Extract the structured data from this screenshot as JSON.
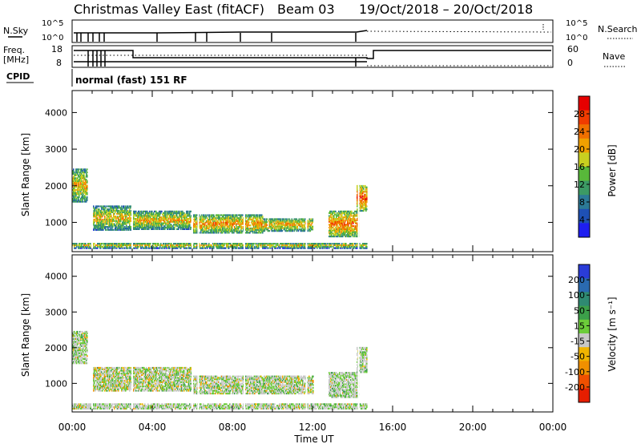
{
  "header": {
    "title": "Christmas Valley East (fitACF)",
    "beam": "Beam 03",
    "date_range": "19/Oct/2018 – 20/Oct/2018"
  },
  "params": {
    "nsky_label": "N.Sky",
    "nsky_tick_top": "10^5",
    "nsky_tick_bottom": "10^0",
    "nsearch_label": "N.Search",
    "nsearch_tick_top": "10^5",
    "nsearch_tick_bottom": "10^0",
    "freq_label": "Freq.",
    "freq_unit": "[MHz]",
    "freq_tick_top": "18",
    "freq_tick_bottom": "8",
    "nave_label": "Nave",
    "nave_tick_top": "60",
    "nave_tick_bottom": "0",
    "cpid_label": "CPID",
    "cpid_value": "normal (fast) 151 RF"
  },
  "colors": {
    "power": [
      "#1e1ef0",
      "#1e50b4",
      "#2c7a96",
      "#3c9a64",
      "#58b83a",
      "#c8d020",
      "#f0a000",
      "#f07000",
      "#f03c00",
      "#e60000"
    ],
    "velocity": [
      "#2a3cd8",
      "#2a6ab0",
      "#2f8a72",
      "#3ca04a",
      "#6ccc3a",
      "#c8c8c8",
      "#f0b400",
      "#f09000",
      "#f05000",
      "#e61e00"
    ],
    "grey": "#c8c8c8"
  },
  "chart_data": [
    {
      "type": "heatmap",
      "name": "power",
      "xlabel": "Time UT",
      "ylabel": "Slant Range [km]",
      "ylim": [
        200,
        4600
      ],
      "xlim": [
        0,
        24
      ],
      "x_ticks": [
        "00:00",
        "04:00",
        "08:00",
        "12:00",
        "16:00",
        "20:00",
        "00:00"
      ],
      "y_ticks": [
        1000,
        2000,
        3000,
        4000
      ],
      "colorbar": {
        "label": "Power [dB]",
        "ticks": [
          "4",
          "8",
          "12",
          "16",
          "20",
          "24",
          "28"
        ]
      },
      "echo_regions": [
        {
          "t0": 0.0,
          "t1": 0.75,
          "r0": 1550,
          "r1": 2450,
          "level": 0.4
        },
        {
          "t0": 1.0,
          "t1": 3.0,
          "r0": 780,
          "r1": 1450,
          "level": 0.35
        },
        {
          "t0": 3.0,
          "t1": 6.0,
          "r0": 800,
          "r1": 1300,
          "level": 0.4
        },
        {
          "t0": 6.0,
          "t1": 9.5,
          "r0": 700,
          "r1": 1200,
          "level": 0.5
        },
        {
          "t0": 9.5,
          "t1": 12.0,
          "r0": 750,
          "r1": 1100,
          "level": 0.45
        },
        {
          "t0": 12.8,
          "t1": 14.3,
          "r0": 600,
          "r1": 1300,
          "level": 0.6
        },
        {
          "t0": 14.2,
          "t1": 14.7,
          "r0": 1300,
          "r1": 2000,
          "level": 0.7
        },
        {
          "t0": 0.0,
          "t1": 14.7,
          "r0": 280,
          "r1": 430,
          "level": 0.3
        }
      ]
    },
    {
      "type": "heatmap",
      "name": "velocity",
      "xlabel": "Time UT",
      "ylabel": "Slant Range [km]",
      "ylim": [
        200,
        4600
      ],
      "xlim": [
        0,
        24
      ],
      "x_ticks": [
        "00:00",
        "04:00",
        "08:00",
        "12:00",
        "16:00",
        "20:00",
        "00:00"
      ],
      "y_ticks": [
        1000,
        2000,
        3000,
        4000
      ],
      "colorbar": {
        "label": "Velocity [m s⁻¹]",
        "ticks": [
          "200",
          "100",
          "50",
          "15",
          "-15",
          "-50",
          "-100",
          "-200"
        ]
      },
      "echo_regions": [
        {
          "t0": 0.0,
          "t1": 0.75,
          "r0": 1550,
          "r1": 2450,
          "level": 0.5
        },
        {
          "t0": 1.0,
          "t1": 6.0,
          "r0": 780,
          "r1": 1450,
          "level": 0.45
        },
        {
          "t0": 6.0,
          "t1": 12.0,
          "r0": 700,
          "r1": 1200,
          "level": 0.5
        },
        {
          "t0": 12.8,
          "t1": 14.3,
          "r0": 600,
          "r1": 1300,
          "level": 0.6
        },
        {
          "t0": 14.2,
          "t1": 14.7,
          "r0": 1300,
          "r1": 2000,
          "level": 0.5
        },
        {
          "t0": 0.0,
          "t1": 14.7,
          "r0": 280,
          "r1": 430,
          "level": 0.55
        }
      ]
    }
  ]
}
